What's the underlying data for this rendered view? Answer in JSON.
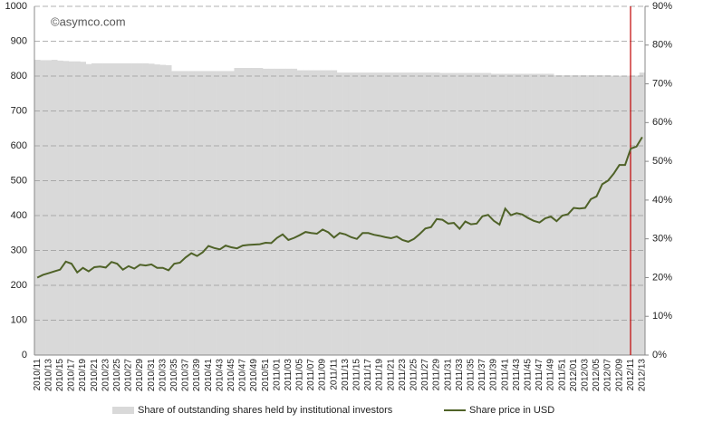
{
  "chart_data": {
    "type": "combo",
    "watermark": "©asymco.com",
    "categories": [
      "2010/11",
      null,
      "2010/13",
      null,
      "2010/15",
      null,
      "2010/17",
      null,
      "2010/19",
      null,
      "2010/21",
      null,
      "2010/23",
      null,
      "2010/25",
      null,
      "2010/27",
      null,
      "2010/29",
      null,
      "2010/31",
      null,
      "2010/33",
      null,
      "2010/35",
      null,
      "2010/37",
      null,
      "2010/39",
      null,
      "2010/41",
      null,
      "2010/43",
      null,
      "2010/45",
      null,
      "2010/47",
      null,
      "2010/49",
      null,
      "2010/51",
      null,
      "2011/01",
      null,
      "2011/03",
      null,
      "2011/05",
      null,
      "2011/07",
      null,
      "2011/09",
      null,
      "2011/11",
      null,
      "2011/13",
      null,
      "2011/15",
      null,
      "2011/17",
      null,
      "2011/19",
      null,
      "2011/21",
      null,
      "2011/23",
      null,
      "2011/25",
      null,
      "2011/27",
      null,
      "2011/29",
      null,
      "2011/31",
      null,
      "2011/33",
      null,
      "2011/35",
      null,
      "2011/37",
      null,
      "2011/39",
      null,
      "2011/41",
      null,
      "2011/43",
      null,
      "2011/45",
      null,
      "2011/47",
      null,
      "2011/49",
      null,
      "2011/51",
      null,
      "2012/01",
      null,
      "2012/03",
      null,
      "2012/05",
      null,
      "2012/07",
      null,
      "2012/09",
      null,
      "2012/11",
      null,
      "2012/13"
    ],
    "series": [
      {
        "name": "Share of outstanding shares held by institutional investors",
        "type": "bar",
        "axis": "y2",
        "color": "#d9d9d9",
        "values": [
          76.2,
          76.1,
          76.1,
          76.2,
          76.0,
          75.9,
          75.8,
          75.8,
          75.7,
          75.1,
          75.3,
          75.3,
          75.3,
          75.3,
          75.3,
          75.3,
          75.3,
          75.3,
          75.3,
          75.3,
          75.2,
          75.0,
          74.9,
          74.8,
          73.3,
          73.3,
          73.3,
          73.3,
          73.3,
          73.3,
          73.3,
          73.3,
          73.3,
          73.3,
          73.3,
          74.1,
          74.1,
          74.1,
          74.1,
          74.1,
          73.9,
          73.9,
          73.9,
          73.9,
          73.9,
          73.9,
          73.5,
          73.5,
          73.5,
          73.5,
          73.5,
          73.5,
          73.5,
          72.9,
          72.9,
          72.9,
          72.9,
          72.9,
          72.9,
          72.9,
          72.9,
          72.9,
          72.9,
          72.9,
          72.9,
          72.9,
          72.9,
          72.9,
          72.9,
          72.9,
          72.9,
          72.8,
          72.8,
          72.8,
          72.8,
          72.8,
          72.8,
          72.8,
          72.8,
          72.8,
          72.6,
          72.6,
          72.6,
          72.6,
          72.6,
          72.6,
          72.6,
          72.6,
          72.6,
          72.6,
          72.6,
          72.2,
          72.2,
          72.2,
          72.2,
          72.2,
          72.2,
          72.2,
          72.2,
          72.2,
          72.2,
          72.1,
          72.1,
          72.1,
          72.1,
          72.1,
          72.9
        ]
      },
      {
        "name": "Share price in USD",
        "type": "line",
        "color": "#4f6228",
        "values": [
          222,
          230,
          235,
          240,
          245,
          268,
          262,
          237,
          250,
          240,
          252,
          254,
          251,
          267,
          262,
          245,
          255,
          248,
          259,
          257,
          260,
          250,
          250,
          243,
          262,
          265,
          280,
          292,
          284,
          295,
          313,
          307,
          303,
          314,
          309,
          306,
          314,
          316,
          317,
          318,
          322,
          321,
          336,
          346,
          330,
          336,
          344,
          353,
          350,
          348,
          360,
          352,
          337,
          350,
          346,
          338,
          333,
          350,
          350,
          345,
          342,
          338,
          335,
          340,
          330,
          325,
          333,
          347,
          363,
          367,
          390,
          388,
          377,
          379,
          362,
          383,
          375,
          377,
          398,
          402,
          385,
          374,
          420,
          401,
          407,
          403,
          393,
          385,
          380,
          392,
          397,
          384,
          400,
          404,
          422,
          420,
          422,
          447,
          455,
          490,
          500,
          520,
          545,
          545,
          592,
          598,
          625
        ]
      }
    ],
    "ylim": [
      0,
      1000
    ],
    "yticks": [
      0,
      100,
      200,
      300,
      400,
      500,
      600,
      700,
      800,
      900,
      1000
    ],
    "y2lim": [
      0,
      90
    ],
    "y2ticks": [
      {
        "value": 0,
        "label": "0%"
      },
      {
        "value": 10,
        "label": "10%"
      },
      {
        "value": 20,
        "label": "20%"
      },
      {
        "value": 30,
        "label": "30%"
      },
      {
        "value": 40,
        "label": "40%"
      },
      {
        "value": 50,
        "label": "50%"
      },
      {
        "value": 60,
        "label": "60%"
      },
      {
        "value": 70,
        "label": "70%"
      },
      {
        "value": 80,
        "label": "80%"
      },
      {
        "value": 90,
        "label": "90%"
      }
    ],
    "grid": true
  }
}
